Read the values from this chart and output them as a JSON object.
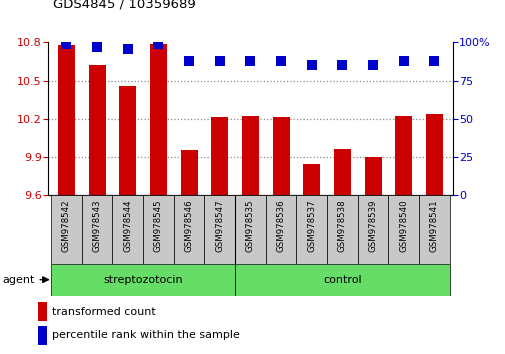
{
  "title": "GDS4845 / 10359689",
  "categories": [
    "GSM978542",
    "GSM978543",
    "GSM978544",
    "GSM978545",
    "GSM978546",
    "GSM978547",
    "GSM978535",
    "GSM978536",
    "GSM978537",
    "GSM978538",
    "GSM978539",
    "GSM978540",
    "GSM978541"
  ],
  "bar_values": [
    10.78,
    10.62,
    10.46,
    10.79,
    9.95,
    10.21,
    10.22,
    10.21,
    9.84,
    9.96,
    9.9,
    10.22,
    10.24
  ],
  "percentile_values": [
    99,
    97,
    96,
    99,
    88,
    88,
    88,
    88,
    85,
    85,
    85,
    88,
    88
  ],
  "bar_color": "#cc0000",
  "percentile_color": "#0000cc",
  "ylim_left": [
    9.6,
    10.8
  ],
  "ylim_right": [
    0,
    100
  ],
  "yticks_left": [
    9.6,
    9.9,
    10.2,
    10.5,
    10.8
  ],
  "yticks_right": [
    0,
    25,
    50,
    75,
    100
  ],
  "ytick_labels_left": [
    "9.6",
    "9.9",
    "10.2",
    "10.5",
    "10.8"
  ],
  "ytick_labels_right": [
    "0",
    "25",
    "50",
    "75",
    "100%"
  ],
  "groups": [
    {
      "label": "streptozotocin",
      "start": 0,
      "end": 5
    },
    {
      "label": "control",
      "start": 6,
      "end": 12
    }
  ],
  "group_color": "#66dd66",
  "agent_label": "agent",
  "legend_items": [
    {
      "color": "#cc0000",
      "label": "transformed count"
    },
    {
      "color": "#0000cc",
      "label": "percentile rank within the sample"
    }
  ],
  "bar_width": 0.55,
  "dotted_grid_color": "#888888",
  "plot_bg_color": "#ffffff",
  "xtick_bg_color": "#c8c8c8",
  "percentile_marker_size": 55
}
